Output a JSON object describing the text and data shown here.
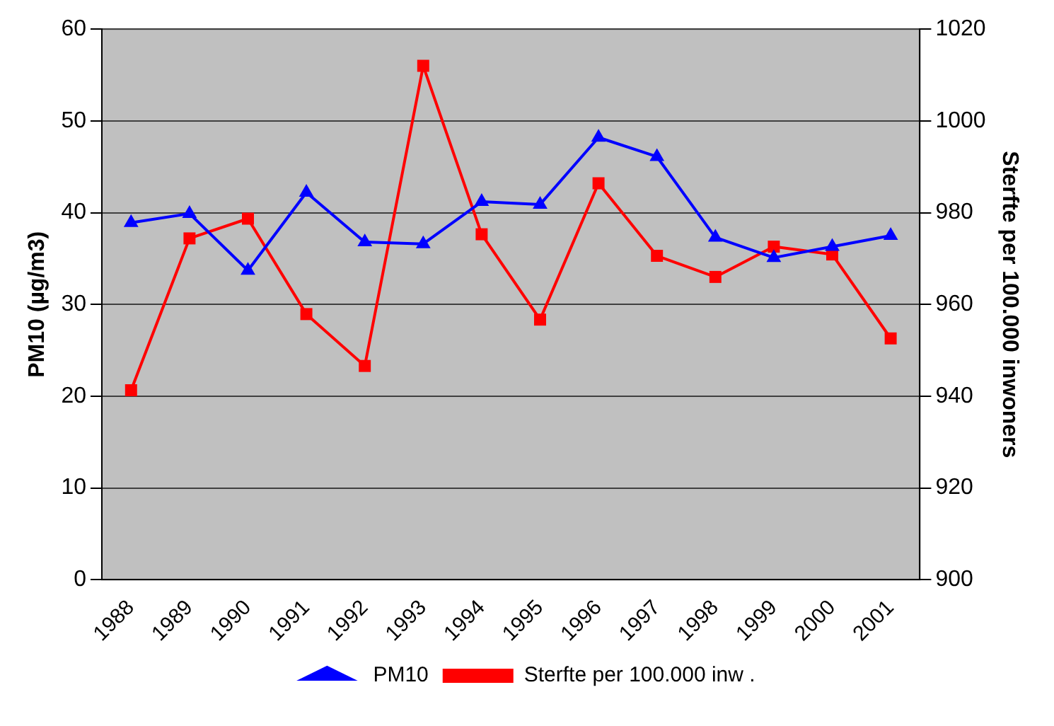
{
  "chart_data": {
    "type": "line",
    "ylabel": "PM10 (µg/m3)",
    "y2label": "Sterfte per 100.000 inwoners",
    "categories": [
      "1988",
      "1989",
      "1990",
      "1991",
      "1992",
      "1993",
      "1994",
      "1995",
      "1996",
      "1997",
      "1998",
      "1999",
      "2000",
      "2001"
    ],
    "series": [
      {
        "name": "PM10",
        "color": "#0000ff",
        "marker": "triangle",
        "values": [
          38.9,
          39.9,
          33.7,
          42.2,
          36.8,
          36.6,
          41.2,
          40.9,
          48.2,
          46.1,
          37.3,
          35.1,
          36.3,
          37.5
        ]
      },
      {
        "name": "Sterfte per 100.000 inw .",
        "color": "#ff0000",
        "marker": "square",
        "axis": "y2",
        "values": [
          941.3,
          974.4,
          978.7,
          957.9,
          946.6,
          1012,
          975.3,
          956.7,
          986.4,
          970.6,
          966,
          972.6,
          970.9,
          952.6
        ]
      }
    ],
    "ylim": [
      0,
      60
    ],
    "yticks": [
      0,
      10,
      20,
      30,
      40,
      50,
      60
    ],
    "y2lim": [
      900,
      1020
    ],
    "y2ticks": [
      900,
      920,
      940,
      960,
      980,
      1000,
      1020
    ],
    "grid": "y",
    "legend": "bottom",
    "line_style": "solid"
  }
}
